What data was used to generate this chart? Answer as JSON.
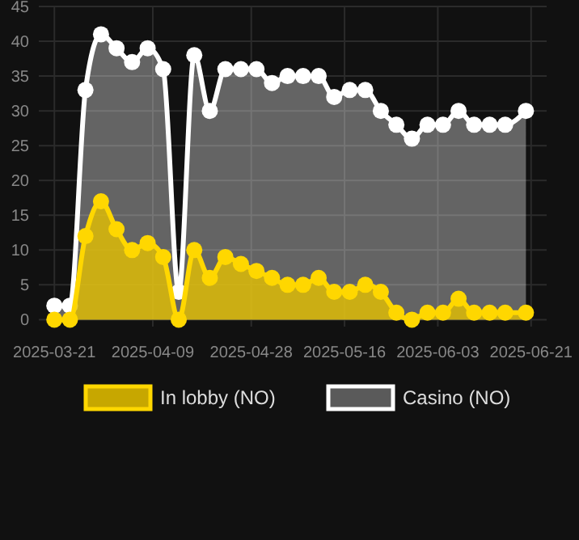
{
  "chart_data": {
    "type": "area",
    "x": [
      "2025-03-21",
      "2025-03-24",
      "2025-03-27",
      "2025-03-30",
      "2025-04-02",
      "2025-04-05",
      "2025-04-08",
      "2025-04-11",
      "2025-04-14",
      "2025-04-17",
      "2025-04-20",
      "2025-04-23",
      "2025-04-26",
      "2025-04-29",
      "2025-05-02",
      "2025-05-05",
      "2025-05-08",
      "2025-05-11",
      "2025-05-14",
      "2025-05-17",
      "2025-05-20",
      "2025-05-23",
      "2025-05-26",
      "2025-05-29",
      "2025-06-01",
      "2025-06-04",
      "2025-06-07",
      "2025-06-10",
      "2025-06-13",
      "2025-06-16",
      "2025-06-20"
    ],
    "series": [
      {
        "name": "Casino (NO)",
        "color": "#ffffff",
        "values": [
          2,
          2,
          33,
          41,
          39,
          37,
          39,
          36,
          4,
          38,
          30,
          36,
          36,
          36,
          34,
          35,
          35,
          35,
          32,
          33,
          33,
          30,
          28,
          26,
          28,
          28,
          30,
          28,
          28,
          28,
          30
        ]
      },
      {
        "name": "In lobby (NO)",
        "color": "#ffd700",
        "values": [
          0,
          0,
          12,
          17,
          13,
          10,
          11,
          9,
          0,
          10,
          6,
          9,
          8,
          7,
          6,
          5,
          5,
          6,
          4,
          4,
          5,
          4,
          1,
          0,
          1,
          1,
          3,
          1,
          1,
          1,
          1
        ]
      }
    ],
    "xlim": [
      "2025-03-18",
      "2025-06-24"
    ],
    "xticks": [
      {
        "value": "2025-03-21",
        "label": "2025-03-21"
      },
      {
        "value": "2025-04-09",
        "label": "2025-04-09"
      },
      {
        "value": "2025-04-28",
        "label": "2025-04-28"
      },
      {
        "value": "2025-05-16",
        "label": "2025-05-16"
      },
      {
        "value": "2025-06-03",
        "label": "2025-06-03"
      },
      {
        "value": "2025-06-21",
        "label": "2025-06-21"
      }
    ],
    "ylim": [
      -1,
      45
    ],
    "yticks": [
      0,
      5,
      10,
      15,
      20,
      25,
      30,
      35,
      40,
      45
    ],
    "grid": true,
    "legend": "bottom",
    "marker": "circle",
    "line_style": "solid"
  }
}
